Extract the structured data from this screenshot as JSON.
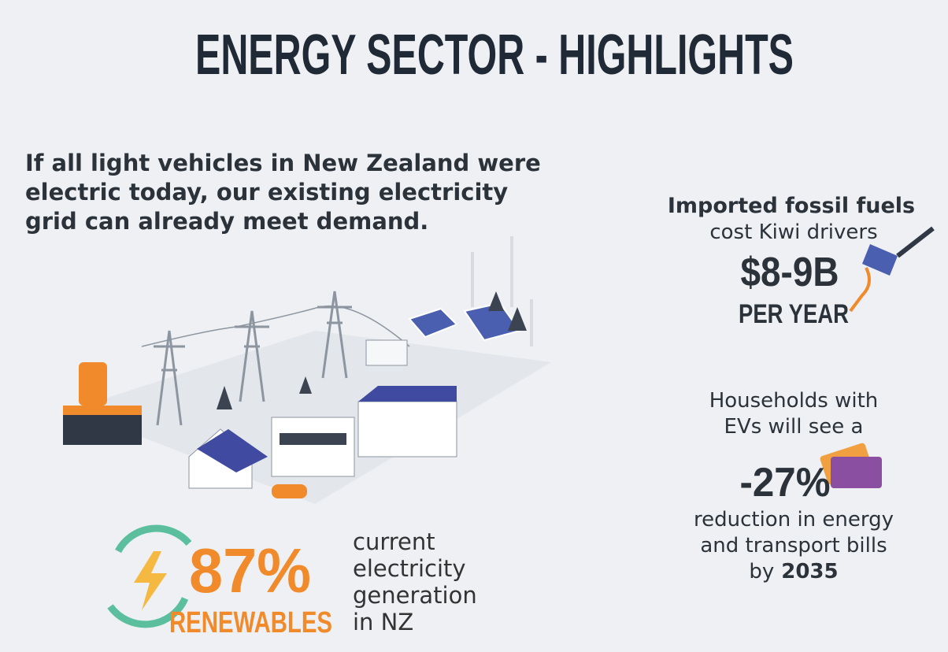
{
  "title": "ENERGY SECTOR - HIGHLIGHTS",
  "intro": {
    "lines": [
      "If all light vehicles in New Zealand were",
      "electric today, our existing electricity",
      "grid can already meet demand."
    ]
  },
  "fossil_fuels": {
    "heading": "Imported fossil fuels",
    "text": "cost Kiwi drivers",
    "figure": "$8-9B",
    "unit": "PER YEAR"
  },
  "households": {
    "lines_before": [
      "Households with",
      "EVs will see a"
    ],
    "figure": "-27%",
    "lines_after": [
      "reduction in energy",
      "and transport bills"
    ],
    "by": "by",
    "year": "2035"
  },
  "renewables": {
    "figure": "87%",
    "label": "RENEWABLES",
    "description": [
      "current",
      "electricity",
      "generation",
      "in NZ"
    ]
  }
}
